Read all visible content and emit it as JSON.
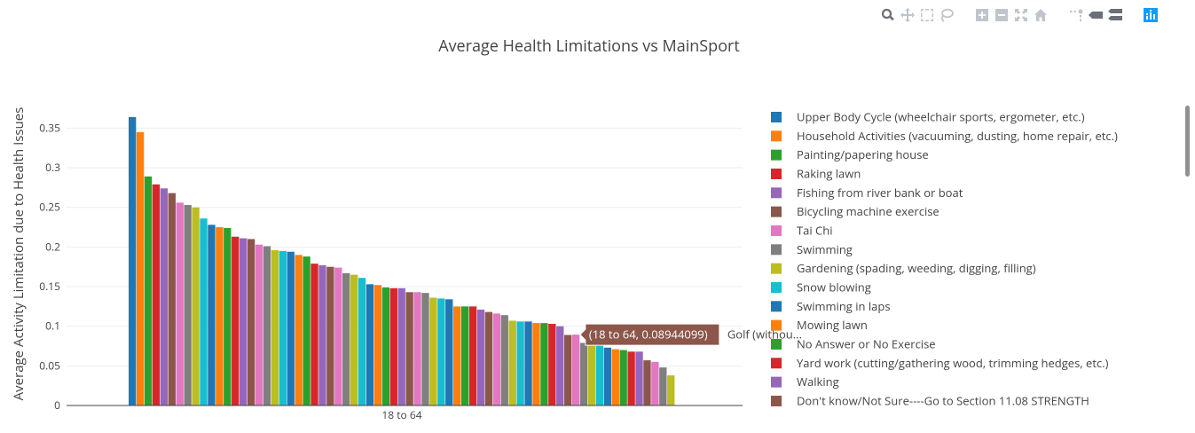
{
  "chart_data": {
    "type": "bar",
    "title": "Average Health Limitations vs MainSport",
    "xlabel": "",
    "ylabel": "Average Activity Limitation due to Health Issues",
    "categories": [
      "18 to 64"
    ],
    "ylim": [
      0,
      0.365
    ],
    "yticks": [
      0,
      0.05,
      0.1,
      0.15,
      0.2,
      0.25,
      0.3,
      0.35
    ],
    "ytick_labels": [
      "0",
      "0.05",
      "0.1",
      "0.15",
      "0.2",
      "0.25",
      "0.3",
      "0.35"
    ],
    "grid": true,
    "legend_position": "right",
    "palette": [
      "#1f77b4",
      "#ff7f0e",
      "#2ca02c",
      "#d62728",
      "#9467bd",
      "#8c564b",
      "#e377c2",
      "#7f7f7f",
      "#bcbd22",
      "#17becf"
    ],
    "series": [
      {
        "name": "Upper Body Cycle (wheelchair sports, ergometer, etc.)",
        "values": [
          0.364
        ]
      },
      {
        "name": "Household Activities (vacuuming, dusting, home repair, etc.)",
        "values": [
          0.345
        ]
      },
      {
        "name": "Painting/papering house",
        "values": [
          0.289
        ]
      },
      {
        "name": "Raking lawn",
        "values": [
          0.279
        ]
      },
      {
        "name": "Fishing from river bank or boat",
        "values": [
          0.274
        ]
      },
      {
        "name": "Bicycling machine exercise",
        "values": [
          0.268
        ]
      },
      {
        "name": "Tai Chi",
        "values": [
          0.256
        ]
      },
      {
        "name": "Swimming",
        "values": [
          0.253
        ]
      },
      {
        "name": "Gardening (spading, weeding, digging, filling)",
        "values": [
          0.25
        ]
      },
      {
        "name": "Snow blowing",
        "values": [
          0.236
        ]
      },
      {
        "name": "Swimming in laps",
        "values": [
          0.228
        ]
      },
      {
        "name": "Mowing lawn",
        "values": [
          0.225
        ]
      },
      {
        "name": "No Answer or No Exercise",
        "values": [
          0.224
        ]
      },
      {
        "name": "Yard work (cutting/gathering wood, trimming hedges, etc.)",
        "values": [
          0.213
        ]
      },
      {
        "name": "Walking",
        "values": [
          0.211
        ]
      },
      {
        "name": "Don't know/Not Sure----Go to Section 11.08 STRENGTH",
        "values": [
          0.21
        ]
      },
      {
        "values": [
          0.203
        ]
      },
      {
        "values": [
          0.201
        ]
      },
      {
        "values": [
          0.196
        ]
      },
      {
        "values": [
          0.195
        ]
      },
      {
        "values": [
          0.194
        ]
      },
      {
        "values": [
          0.19
        ]
      },
      {
        "values": [
          0.188
        ]
      },
      {
        "values": [
          0.179
        ]
      },
      {
        "values": [
          0.177
        ]
      },
      {
        "values": [
          0.175
        ]
      },
      {
        "values": [
          0.174
        ]
      },
      {
        "values": [
          0.167
        ]
      },
      {
        "values": [
          0.165
        ]
      },
      {
        "values": [
          0.161
        ]
      },
      {
        "values": [
          0.153
        ]
      },
      {
        "values": [
          0.152
        ]
      },
      {
        "values": [
          0.149
        ]
      },
      {
        "values": [
          0.148
        ]
      },
      {
        "values": [
          0.148
        ]
      },
      {
        "values": [
          0.143
        ]
      },
      {
        "values": [
          0.143
        ]
      },
      {
        "values": [
          0.142
        ]
      },
      {
        "values": [
          0.136
        ]
      },
      {
        "values": [
          0.135
        ]
      },
      {
        "values": [
          0.134
        ]
      },
      {
        "values": [
          0.125
        ]
      },
      {
        "values": [
          0.125
        ]
      },
      {
        "values": [
          0.125
        ]
      },
      {
        "values": [
          0.121
        ]
      },
      {
        "values": [
          0.118
        ]
      },
      {
        "values": [
          0.116
        ]
      },
      {
        "values": [
          0.114
        ]
      },
      {
        "values": [
          0.107
        ]
      },
      {
        "values": [
          0.106
        ]
      },
      {
        "values": [
          0.106
        ]
      },
      {
        "values": [
          0.104
        ]
      },
      {
        "values": [
          0.104
        ]
      },
      {
        "values": [
          0.103
        ]
      },
      {
        "values": [
          0.1
        ]
      },
      {
        "values": [
          0.089
        ]
      },
      {
        "values": [
          0.08944099
        ]
      },
      {
        "values": [
          0.079
        ]
      },
      {
        "values": [
          0.077
        ]
      },
      {
        "values": [
          0.077
        ]
      },
      {
        "values": [
          0.073
        ]
      },
      {
        "values": [
          0.071
        ]
      },
      {
        "values": [
          0.07
        ]
      },
      {
        "values": [
          0.068
        ]
      },
      {
        "values": [
          0.068
        ]
      },
      {
        "values": [
          0.057
        ]
      },
      {
        "values": [
          0.055
        ]
      },
      {
        "values": [
          0.048
        ]
      },
      {
        "values": [
          0.038
        ]
      }
    ],
    "hover": {
      "value_text": "(18 to 64, 0.08944099)",
      "name_text": "Golf (withou...",
      "color": "#8c564b"
    }
  }
}
